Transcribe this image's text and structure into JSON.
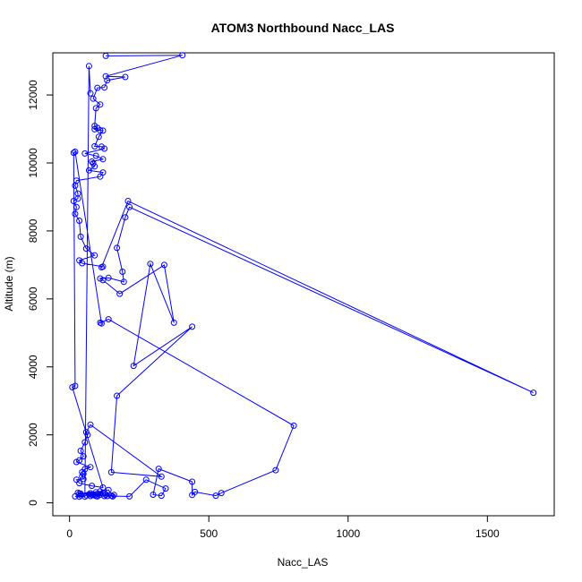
{
  "chart_data": {
    "type": "scatter",
    "title": "ATOM3 Northbound Nacc_LAS",
    "xlabel": "Nacc_LAS",
    "ylabel": "Altitude (m)",
    "xlim": [
      -60,
      1740
    ],
    "ylim": [
      -380,
      13240
    ],
    "xticks": [
      0,
      500,
      1000,
      1500
    ],
    "yticks": [
      0,
      2000,
      4000,
      6000,
      8000,
      10000,
      12000
    ],
    "grid": false,
    "legend": "none",
    "colors": {
      "series": "#0000ff",
      "axis": "#000000",
      "background": "#ffffff"
    },
    "marker": "open-circle",
    "connected": true,
    "series": [
      {
        "x": [
          130,
          405,
          130,
          200,
          135,
          125,
          100,
          85,
          110,
          95,
          90,
          100,
          90,
          110,
          120,
          105,
          90,
          115,
          125,
          55,
          95,
          120,
          80,
          85,
          90,
          70,
          120,
          110,
          25,
          20,
          30,
          30,
          15,
          25,
          20,
          35,
          40,
          60,
          90,
          35,
          45,
          120,
          115,
          210,
          1665,
          215,
          200,
          170,
          190,
          195,
          140,
          110,
          120,
          180,
          340,
          375,
          290,
          230,
          440,
          170,
          150,
          330,
          75,
          60,
          65,
          55,
          40,
          50,
          35,
          25,
          75,
          55,
          45,
          50,
          45,
          50,
          25,
          35,
          80,
          120,
          10,
          20,
          15,
          20,
          115,
          110,
          140,
          805,
          740,
          545,
          525,
          450,
          440,
          440,
          320,
          300,
          330,
          345,
          275,
          215,
          135,
          90,
          30,
          110,
          35,
          150,
          160,
          125,
          130,
          95,
          120,
          95,
          140,
          155,
          110,
          40,
          80,
          100,
          100,
          75,
          75,
          85,
          70,
          60,
          35,
          40,
          20,
          55,
          70,
          75
        ],
        "y": [
          13150,
          13170,
          12550,
          12530,
          12430,
          12220,
          12210,
          11890,
          11720,
          11610,
          11090,
          11030,
          10990,
          10960,
          10950,
          10770,
          10490,
          10480,
          10420,
          10280,
          10210,
          10110,
          10040,
          9990,
          9900,
          9780,
          9720,
          9600,
          9480,
          9330,
          9100,
          8950,
          8880,
          8700,
          8500,
          8300,
          7830,
          7480,
          7280,
          7130,
          7050,
          6950,
          6930,
          8880,
          3240,
          8700,
          8400,
          7500,
          6800,
          6500,
          6620,
          6600,
          6550,
          6150,
          7000,
          5300,
          7030,
          4030,
          5180,
          3150,
          900,
          770,
          2300,
          2080,
          2000,
          1780,
          1530,
          1370,
          1250,
          1200,
          1050,
          990,
          900,
          850,
          780,
          700,
          680,
          580,
          500,
          450,
          3400,
          3440,
          10300,
          10330,
          5280,
          5300,
          5400,
          2270,
          960,
          290,
          210,
          320,
          230,
          620,
          1000,
          240,
          210,
          420,
          680,
          190,
          200,
          220,
          300,
          240,
          270,
          210,
          230,
          200,
          240,
          200,
          290,
          310,
          380,
          190,
          340,
          270,
          240,
          190,
          260,
          280,
          200,
          230,
          250,
          220,
          180,
          220,
          190,
          180,
          12850,
          12050
        ]
      }
    ]
  }
}
